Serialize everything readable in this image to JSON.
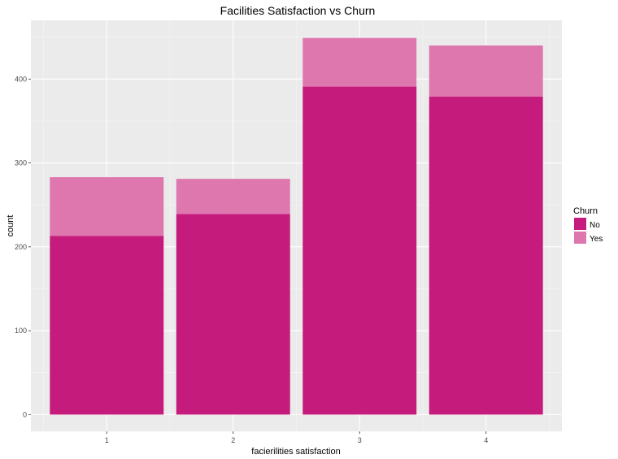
{
  "chart_data": {
    "type": "bar",
    "stacked": true,
    "title": "Facilities Satisfaction vs Churn",
    "xlabel": "facierilities satisfaction",
    "ylabel": "count",
    "categories": [
      "1",
      "2",
      "3",
      "4"
    ],
    "series": [
      {
        "name": "No",
        "values": [
          213,
          239,
          391,
          379
        ],
        "color": "#c51b7d"
      },
      {
        "name": "Yes",
        "values": [
          70,
          42,
          58,
          61
        ],
        "color": "#de77ae"
      }
    ],
    "ylim": [
      -20,
      470
    ],
    "yticks": [
      0,
      100,
      200,
      300,
      400
    ],
    "grid": true,
    "panel_background": "#ebebeb",
    "legend": {
      "title": "Churn",
      "position": "right",
      "items": [
        "No",
        "Yes"
      ]
    }
  }
}
